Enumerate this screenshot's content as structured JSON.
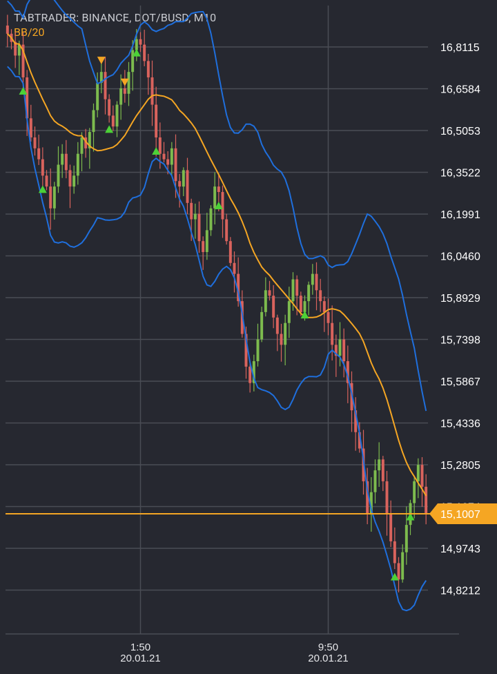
{
  "header": {
    "title": "TABTRADER: BINANCE, DOT/BUSD, M10",
    "indicator": "BB/20"
  },
  "colors": {
    "background": "#262830",
    "grid": "#4a4d55",
    "bull": "#7dbb4e",
    "bear": "#d9635d",
    "band": "#1f6fdd",
    "sma": "#f5a623",
    "buy_arrow": "#4cd137",
    "sell_arrow": "#f5a623"
  },
  "chart_data": {
    "type": "candlestick",
    "symbol": "DOT/BUSD",
    "timeframe": "M10",
    "indicator": "BB/20",
    "y_ticks": [
      "16,8115",
      "16,6584",
      "16,5053",
      "16,3522",
      "16,1991",
      "16,0460",
      "15,8929",
      "15,7398",
      "15,5867",
      "15,4336",
      "15,2805",
      "15,1274",
      "14,9743",
      "14,8212"
    ],
    "y_tick_values": [
      16.8115,
      16.6584,
      16.5053,
      16.3522,
      16.1991,
      16.046,
      15.8929,
      15.7398,
      15.5867,
      15.4336,
      15.2805,
      15.1274,
      14.9743,
      14.8212
    ],
    "ylim": [
      14.665,
      16.97
    ],
    "current_price": 15.1007,
    "current_price_label": "15,1007",
    "x_ticks": [
      {
        "time": "1:50",
        "date": "20.01.21",
        "index": 34
      },
      {
        "time": "9:50",
        "date": "20.01.21",
        "index": 82
      }
    ],
    "closes": [
      16.86,
      16.83,
      16.78,
      16.82,
      16.7,
      16.55,
      16.48,
      16.44,
      16.4,
      16.34,
      16.3,
      16.22,
      16.3,
      16.38,
      16.42,
      16.36,
      16.3,
      16.34,
      16.42,
      16.48,
      16.44,
      16.5,
      16.58,
      16.68,
      16.72,
      16.62,
      16.56,
      16.52,
      16.6,
      16.66,
      16.64,
      16.72,
      16.8,
      16.84,
      16.82,
      16.76,
      16.7,
      16.6,
      16.48,
      16.42,
      16.4,
      16.38,
      16.44,
      16.32,
      16.3,
      16.36,
      16.24,
      16.18,
      16.2,
      16.1,
      16.06,
      16.14,
      16.22,
      16.3,
      16.28,
      16.18,
      16.1,
      16.02,
      15.98,
      15.88,
      15.76,
      15.64,
      15.58,
      15.66,
      15.74,
      15.84,
      15.92,
      15.9,
      15.82,
      15.76,
      15.72,
      15.8,
      15.88,
      15.96,
      15.9,
      15.84,
      15.88,
      15.94,
      15.98,
      15.92,
      15.88,
      15.84,
      15.8,
      15.72,
      15.68,
      15.74,
      15.66,
      15.58,
      15.48,
      15.4,
      15.34,
      15.22,
      15.1,
      15.18,
      15.26,
      15.3,
      15.22,
      15.1,
      15.0,
      14.92,
      14.86,
      14.96,
      15.06,
      15.14,
      15.22,
      15.28,
      15.2,
      15.1
    ]
  }
}
